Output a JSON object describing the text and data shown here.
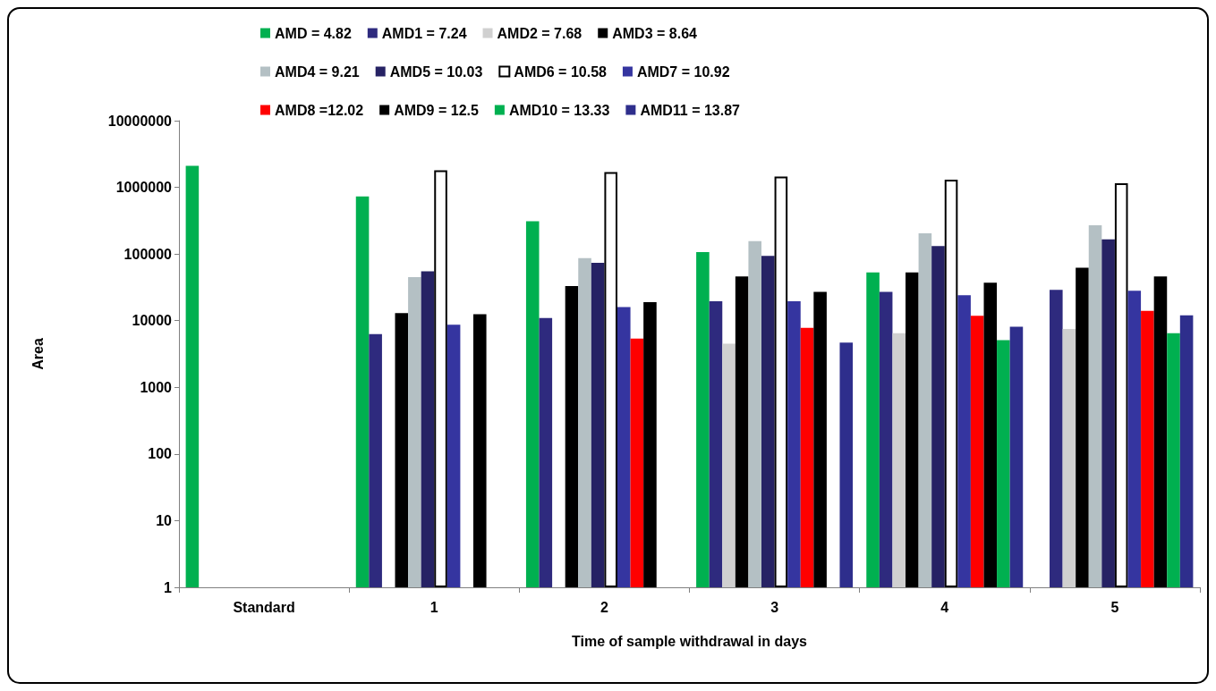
{
  "chart_data": {
    "type": "bar",
    "xlabel": "Time of sample withdrawal in days",
    "ylabel": "Area",
    "categories": [
      "Standard",
      "1",
      "2",
      "3",
      "4",
      "5"
    ],
    "log": "y",
    "ylim": [
      1,
      10000000
    ],
    "yticks": [
      1,
      10,
      100,
      1000,
      10000,
      100000,
      1000000,
      10000000
    ],
    "grid": false,
    "legend": "top",
    "series": [
      {
        "name": "AMD = 4.82",
        "color": "#00b050",
        "values": [
          2100000,
          730000,
          310000,
          107000,
          53000,
          null
        ]
      },
      {
        "name": "AMD1 = 7.24",
        "color": "#2e2a7e",
        "values": [
          null,
          6300,
          11000,
          19500,
          27000,
          29000
        ]
      },
      {
        "name": "AMD2 = 7.68",
        "color": "#d0d0d0",
        "values": [
          null,
          null,
          null,
          4500,
          6500,
          7500
        ]
      },
      {
        "name": "AMD3 = 8.64",
        "color": "#000000",
        "values": [
          null,
          13000,
          33000,
          46000,
          53000,
          62000
        ]
      },
      {
        "name": "AMD4 = 9.21",
        "color": "#b4c0c4",
        "values": [
          null,
          45000,
          87000,
          156000,
          204000,
          270000
        ]
      },
      {
        "name": "AMD5 = 10.03",
        "color": "#262264",
        "values": [
          null,
          55000,
          74000,
          94000,
          132000,
          166000
        ]
      },
      {
        "name": "AMD6 = 10.58",
        "color": "#ffffff",
        "values": [
          null,
          1800000,
          1700000,
          1450000,
          1300000,
          1150000
        ]
      },
      {
        "name": "AMD7 = 10.92",
        "color": "#3535a0",
        "values": [
          null,
          8700,
          16000,
          19500,
          24000,
          28000
        ]
      },
      {
        "name": "AMD8 =12.02",
        "color": "#ff0000",
        "values": [
          null,
          null,
          5400,
          7800,
          11800,
          14000
        ]
      },
      {
        "name": "AMD9 = 12.5",
        "color": "#000000",
        "values": [
          null,
          12500,
          19000,
          27000,
          37000,
          46000
        ]
      },
      {
        "name": "AMD10 = 13.33",
        "color": "#00b050",
        "values": [
          null,
          null,
          null,
          null,
          5100,
          6500
        ]
      },
      {
        "name": "AMD11 = 13.87",
        "color": "#2e2e8c",
        "values": [
          null,
          null,
          null,
          4700,
          8100,
          12000
        ]
      }
    ]
  }
}
